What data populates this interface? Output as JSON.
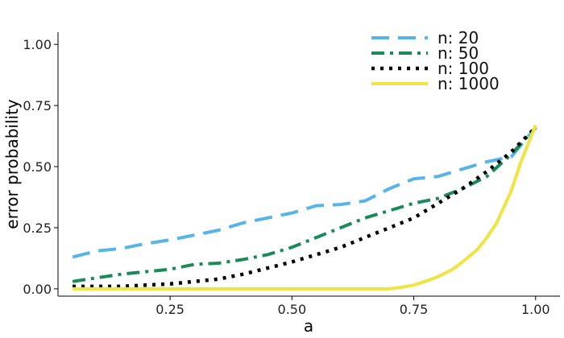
{
  "chart_data": {
    "type": "line",
    "title": "",
    "xlabel": "a",
    "ylabel": "error probability",
    "xlim": [
      0.02,
      1.05
    ],
    "ylim": [
      -0.03,
      1.05
    ],
    "x_ticks": [
      0.25,
      0.5,
      0.75,
      1.0
    ],
    "x_tick_labels": [
      "0.25",
      "0.50",
      "0.75",
      "1.00"
    ],
    "y_ticks": [
      0.0,
      0.25,
      0.5,
      0.75,
      1.0
    ],
    "y_tick_labels": [
      "0.00",
      "0.25",
      "0.50",
      "0.75",
      "1.00"
    ],
    "grid": false,
    "legend_position": "top-right",
    "series": [
      {
        "name": "n:  20",
        "color": "#56b4e9",
        "style": "dashed",
        "x": [
          0.05,
          0.1,
          0.15,
          0.2,
          0.25,
          0.3,
          0.35,
          0.4,
          0.45,
          0.5,
          0.55,
          0.6,
          0.65,
          0.7,
          0.75,
          0.8,
          0.85,
          0.9,
          0.95,
          1.0
        ],
        "y": [
          0.13,
          0.155,
          0.165,
          0.185,
          0.2,
          0.22,
          0.24,
          0.27,
          0.29,
          0.31,
          0.34,
          0.345,
          0.36,
          0.41,
          0.45,
          0.46,
          0.49,
          0.52,
          0.54,
          0.66
        ]
      },
      {
        "name": "n:  50",
        "color": "#1b8a5a",
        "style": "dashdot",
        "x": [
          0.05,
          0.1,
          0.15,
          0.2,
          0.25,
          0.3,
          0.35,
          0.4,
          0.45,
          0.5,
          0.55,
          0.6,
          0.65,
          0.7,
          0.75,
          0.8,
          0.85,
          0.9,
          0.95,
          1.0
        ],
        "y": [
          0.03,
          0.045,
          0.06,
          0.07,
          0.08,
          0.1,
          0.105,
          0.12,
          0.14,
          0.17,
          0.21,
          0.25,
          0.29,
          0.32,
          0.35,
          0.37,
          0.41,
          0.46,
          0.55,
          0.66
        ]
      },
      {
        "name": "n:  100",
        "color": "#000000",
        "style": "dotted",
        "x": [
          0.05,
          0.1,
          0.15,
          0.2,
          0.25,
          0.3,
          0.35,
          0.4,
          0.45,
          0.5,
          0.55,
          0.6,
          0.65,
          0.7,
          0.75,
          0.8,
          0.85,
          0.9,
          0.95,
          1.0
        ],
        "y": [
          0.01,
          0.01,
          0.01,
          0.015,
          0.02,
          0.03,
          0.04,
          0.06,
          0.085,
          0.11,
          0.14,
          0.17,
          0.21,
          0.25,
          0.29,
          0.35,
          0.41,
          0.48,
          0.56,
          0.66
        ]
      },
      {
        "name": "n:  1000",
        "color": "#f0e442",
        "style": "solid",
        "x": [
          0.05,
          0.1,
          0.2,
          0.3,
          0.4,
          0.5,
          0.6,
          0.65,
          0.7,
          0.72,
          0.75,
          0.78,
          0.8,
          0.83,
          0.85,
          0.88,
          0.9,
          0.92,
          0.95,
          0.97,
          1.0
        ],
        "y": [
          0.0,
          0.0,
          0.0,
          0.0,
          0.0,
          0.0,
          0.0,
          0.0,
          0.0,
          0.005,
          0.015,
          0.035,
          0.05,
          0.08,
          0.11,
          0.16,
          0.21,
          0.27,
          0.4,
          0.52,
          0.67
        ]
      }
    ]
  }
}
